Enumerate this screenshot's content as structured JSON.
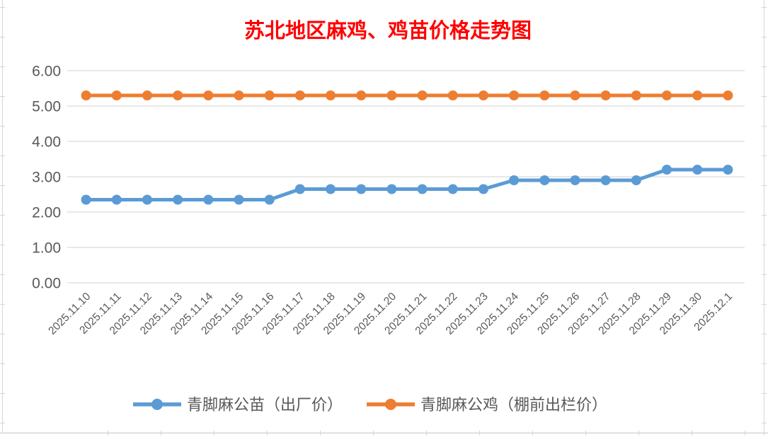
{
  "page": {
    "background": "#FFFFFF"
  },
  "chart_data": {
    "type": "line",
    "title": "苏北地区麻鸡、鸡苗价格走势图",
    "title_color": "#FF0000",
    "categories": [
      "2025.11.10",
      "2025.11.11",
      "2025.11.12",
      "2025.11.13",
      "2025.11.14",
      "2025.11.15",
      "2025.11.16",
      "2025.11.17",
      "2025.11.18",
      "2025.11.19",
      "2025.11.20",
      "2025.11.21",
      "2025.11.22",
      "2025.11.23",
      "2025.11.24",
      "2025.11.25",
      "2025.11.26",
      "2025.11.27",
      "2025.11.28",
      "2025.11.29",
      "2025.11.30",
      "2025.12.1"
    ],
    "series": [
      {
        "name": "青脚麻公苗（出厂价）",
        "color": "#5B9BD5",
        "values": [
          2.35,
          2.35,
          2.35,
          2.35,
          2.35,
          2.35,
          2.35,
          2.65,
          2.65,
          2.65,
          2.65,
          2.65,
          2.65,
          2.65,
          2.9,
          2.9,
          2.9,
          2.9,
          2.9,
          3.2,
          3.2,
          3.2
        ]
      },
      {
        "name": "青脚麻公鸡（棚前出栏价）",
        "color": "#ED7D31",
        "values": [
          5.3,
          5.3,
          5.3,
          5.3,
          5.3,
          5.3,
          5.3,
          5.3,
          5.3,
          5.3,
          5.3,
          5.3,
          5.3,
          5.3,
          5.3,
          5.3,
          5.3,
          5.3,
          5.3,
          5.3,
          5.3,
          5.3
        ]
      }
    ],
    "xlabel": "",
    "ylabel": "",
    "ylim": [
      0,
      6
    ],
    "y_ticks": [
      "0.00",
      "1.00",
      "2.00",
      "3.00",
      "4.00",
      "5.00",
      "6.00"
    ],
    "grid": true,
    "legend_position": "bottom",
    "axis_text_color": "#595959",
    "gridline_color": "#D9D9D9",
    "sheet_line_color": "#D6D6D6"
  }
}
